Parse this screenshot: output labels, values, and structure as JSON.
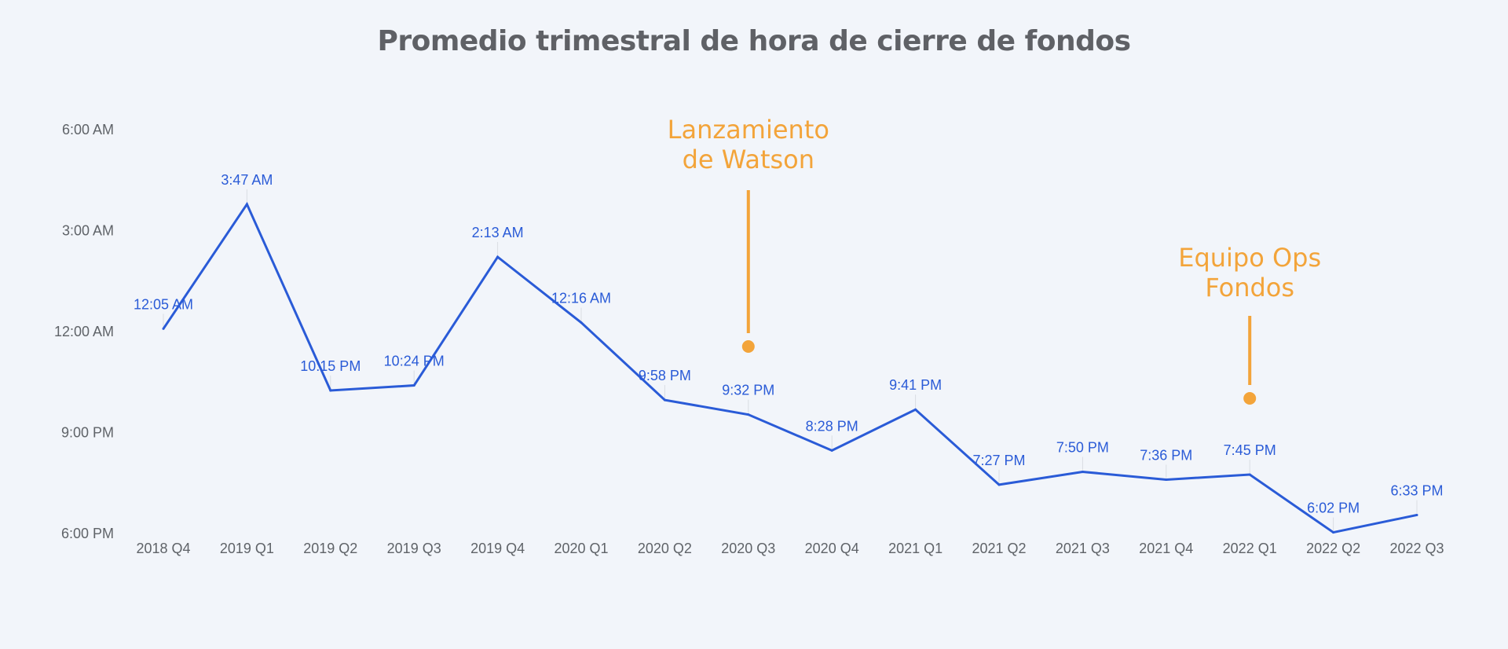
{
  "chart_data": {
    "type": "line",
    "title": "Promedio trimestral de hora de cierre de fondos",
    "xlabel": "",
    "ylabel": "",
    "categories": [
      "2018 Q4",
      "2019 Q1",
      "2019 Q2",
      "2019 Q3",
      "2019 Q4",
      "2020 Q1",
      "2020 Q2",
      "2020 Q3",
      "2020 Q4",
      "2021 Q1",
      "2021 Q2",
      "2021 Q3",
      "2021 Q4",
      "2022 Q1",
      "2022 Q2",
      "2022 Q3"
    ],
    "values_minutes_after_6pm": [
      365,
      587,
      255,
      264,
      493,
      376,
      238,
      212,
      148,
      221,
      87,
      110,
      96,
      105,
      2,
      33
    ],
    "data_labels": [
      "12:05 AM",
      "3:47 AM",
      "10:15 PM",
      "10:24 PM",
      "2:13 AM",
      "12:16 AM",
      "9:58 PM",
      "9:32 PM",
      "8:28 PM",
      "9:41 PM",
      "7:27 PM",
      "7:50 PM",
      "7:36 PM",
      "7:45 PM",
      "6:02 PM",
      "6:33 PM"
    ],
    "y_ticks": [
      "6:00 PM",
      "9:00 PM",
      "12:00 AM",
      "3:00 AM",
      "6:00 AM"
    ],
    "y_tick_values": [
      0,
      180,
      360,
      540,
      720
    ],
    "ylim": [
      0,
      720
    ],
    "grid": false,
    "legend": "none",
    "line_color": "#2a5bd7",
    "annotations": [
      {
        "text_lines": [
          "Lanzamiento",
          "de Watson"
        ],
        "category": "2020 Q3",
        "color": "#f3a43a"
      },
      {
        "text_lines": [
          "Equipo Ops",
          "Fondos"
        ],
        "category": "2022 Q1",
        "color": "#f3a43a"
      }
    ]
  }
}
